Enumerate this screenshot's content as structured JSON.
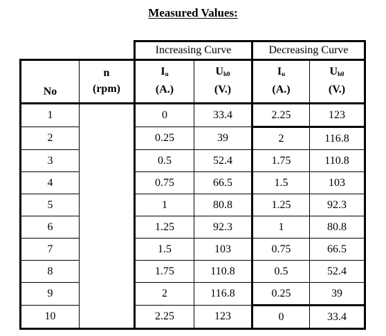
{
  "title": "Measured Values:",
  "groups": {
    "increasing": "Increasing Curve",
    "decreasing": "Decreasing Curve"
  },
  "headers": {
    "no": "No",
    "n_symbol": "n",
    "n_unit": "(rpm)",
    "iu_symbol": "I",
    "iu_sub": "u",
    "iu_unit": "(A.)",
    "uh0_symbol": "U",
    "uh0_sub": "h0",
    "uh0_unit": "(V.)"
  },
  "rows": [
    {
      "no": "1",
      "n": "",
      "inc_i": "0",
      "inc_u": "33.4",
      "dec_i": "2.25",
      "dec_u": "123"
    },
    {
      "no": "2",
      "n": "",
      "inc_i": "0.25",
      "inc_u": "39",
      "dec_i": "2",
      "dec_u": "116.8"
    },
    {
      "no": "3",
      "n": "",
      "inc_i": "0.5",
      "inc_u": "52.4",
      "dec_i": "1.75",
      "dec_u": "110.8"
    },
    {
      "no": "4",
      "n": "",
      "inc_i": "0.75",
      "inc_u": "66.5",
      "dec_i": "1.5",
      "dec_u": "103"
    },
    {
      "no": "5",
      "n": "",
      "inc_i": "1",
      "inc_u": "80.8",
      "dec_i": "1.25",
      "dec_u": "92.3"
    },
    {
      "no": "6",
      "n": "",
      "inc_i": "1.25",
      "inc_u": "92.3",
      "dec_i": "1",
      "dec_u": "80.8"
    },
    {
      "no": "7",
      "n": "",
      "inc_i": "1.5",
      "inc_u": "103",
      "dec_i": "0.75",
      "dec_u": "66.5"
    },
    {
      "no": "8",
      "n": "",
      "inc_i": "1.75",
      "inc_u": "110.8",
      "dec_i": "0.5",
      "dec_u": "52.4"
    },
    {
      "no": "9",
      "n": "",
      "inc_i": "2",
      "inc_u": "116.8",
      "dec_i": "0.25",
      "dec_u": "39"
    },
    {
      "no": "10",
      "n": "",
      "inc_i": "2.25",
      "inc_u": "123",
      "dec_i": "0",
      "dec_u": "33.4"
    }
  ]
}
